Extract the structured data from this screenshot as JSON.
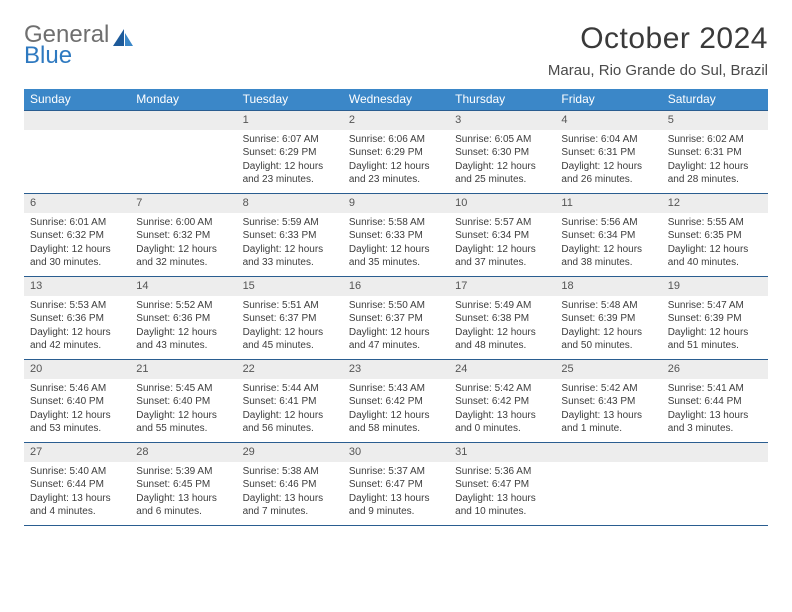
{
  "logo": {
    "general": "General",
    "blue": "Blue"
  },
  "title": "October 2024",
  "location": "Marau, Rio Grande do Sul, Brazil",
  "colors": {
    "header_bg": "#3b87c8",
    "header_text": "#ffffff",
    "week_border": "#2a5d90",
    "daynum_bg": "#ededed",
    "logo_gray": "#6f6f6f",
    "logo_blue": "#2e79c0"
  },
  "dayNames": [
    "Sunday",
    "Monday",
    "Tuesday",
    "Wednesday",
    "Thursday",
    "Friday",
    "Saturday"
  ],
  "weeks": [
    [
      {
        "n": "",
        "sr": "",
        "ss": "",
        "dl": ""
      },
      {
        "n": "",
        "sr": "",
        "ss": "",
        "dl": ""
      },
      {
        "n": "1",
        "sr": "Sunrise: 6:07 AM",
        "ss": "Sunset: 6:29 PM",
        "dl": "Daylight: 12 hours and 23 minutes."
      },
      {
        "n": "2",
        "sr": "Sunrise: 6:06 AM",
        "ss": "Sunset: 6:29 PM",
        "dl": "Daylight: 12 hours and 23 minutes."
      },
      {
        "n": "3",
        "sr": "Sunrise: 6:05 AM",
        "ss": "Sunset: 6:30 PM",
        "dl": "Daylight: 12 hours and 25 minutes."
      },
      {
        "n": "4",
        "sr": "Sunrise: 6:04 AM",
        "ss": "Sunset: 6:31 PM",
        "dl": "Daylight: 12 hours and 26 minutes."
      },
      {
        "n": "5",
        "sr": "Sunrise: 6:02 AM",
        "ss": "Sunset: 6:31 PM",
        "dl": "Daylight: 12 hours and 28 minutes."
      }
    ],
    [
      {
        "n": "6",
        "sr": "Sunrise: 6:01 AM",
        "ss": "Sunset: 6:32 PM",
        "dl": "Daylight: 12 hours and 30 minutes."
      },
      {
        "n": "7",
        "sr": "Sunrise: 6:00 AM",
        "ss": "Sunset: 6:32 PM",
        "dl": "Daylight: 12 hours and 32 minutes."
      },
      {
        "n": "8",
        "sr": "Sunrise: 5:59 AM",
        "ss": "Sunset: 6:33 PM",
        "dl": "Daylight: 12 hours and 33 minutes."
      },
      {
        "n": "9",
        "sr": "Sunrise: 5:58 AM",
        "ss": "Sunset: 6:33 PM",
        "dl": "Daylight: 12 hours and 35 minutes."
      },
      {
        "n": "10",
        "sr": "Sunrise: 5:57 AM",
        "ss": "Sunset: 6:34 PM",
        "dl": "Daylight: 12 hours and 37 minutes."
      },
      {
        "n": "11",
        "sr": "Sunrise: 5:56 AM",
        "ss": "Sunset: 6:34 PM",
        "dl": "Daylight: 12 hours and 38 minutes."
      },
      {
        "n": "12",
        "sr": "Sunrise: 5:55 AM",
        "ss": "Sunset: 6:35 PM",
        "dl": "Daylight: 12 hours and 40 minutes."
      }
    ],
    [
      {
        "n": "13",
        "sr": "Sunrise: 5:53 AM",
        "ss": "Sunset: 6:36 PM",
        "dl": "Daylight: 12 hours and 42 minutes."
      },
      {
        "n": "14",
        "sr": "Sunrise: 5:52 AM",
        "ss": "Sunset: 6:36 PM",
        "dl": "Daylight: 12 hours and 43 minutes."
      },
      {
        "n": "15",
        "sr": "Sunrise: 5:51 AM",
        "ss": "Sunset: 6:37 PM",
        "dl": "Daylight: 12 hours and 45 minutes."
      },
      {
        "n": "16",
        "sr": "Sunrise: 5:50 AM",
        "ss": "Sunset: 6:37 PM",
        "dl": "Daylight: 12 hours and 47 minutes."
      },
      {
        "n": "17",
        "sr": "Sunrise: 5:49 AM",
        "ss": "Sunset: 6:38 PM",
        "dl": "Daylight: 12 hours and 48 minutes."
      },
      {
        "n": "18",
        "sr": "Sunrise: 5:48 AM",
        "ss": "Sunset: 6:39 PM",
        "dl": "Daylight: 12 hours and 50 minutes."
      },
      {
        "n": "19",
        "sr": "Sunrise: 5:47 AM",
        "ss": "Sunset: 6:39 PM",
        "dl": "Daylight: 12 hours and 51 minutes."
      }
    ],
    [
      {
        "n": "20",
        "sr": "Sunrise: 5:46 AM",
        "ss": "Sunset: 6:40 PM",
        "dl": "Daylight: 12 hours and 53 minutes."
      },
      {
        "n": "21",
        "sr": "Sunrise: 5:45 AM",
        "ss": "Sunset: 6:40 PM",
        "dl": "Daylight: 12 hours and 55 minutes."
      },
      {
        "n": "22",
        "sr": "Sunrise: 5:44 AM",
        "ss": "Sunset: 6:41 PM",
        "dl": "Daylight: 12 hours and 56 minutes."
      },
      {
        "n": "23",
        "sr": "Sunrise: 5:43 AM",
        "ss": "Sunset: 6:42 PM",
        "dl": "Daylight: 12 hours and 58 minutes."
      },
      {
        "n": "24",
        "sr": "Sunrise: 5:42 AM",
        "ss": "Sunset: 6:42 PM",
        "dl": "Daylight: 13 hours and 0 minutes."
      },
      {
        "n": "25",
        "sr": "Sunrise: 5:42 AM",
        "ss": "Sunset: 6:43 PM",
        "dl": "Daylight: 13 hours and 1 minute."
      },
      {
        "n": "26",
        "sr": "Sunrise: 5:41 AM",
        "ss": "Sunset: 6:44 PM",
        "dl": "Daylight: 13 hours and 3 minutes."
      }
    ],
    [
      {
        "n": "27",
        "sr": "Sunrise: 5:40 AM",
        "ss": "Sunset: 6:44 PM",
        "dl": "Daylight: 13 hours and 4 minutes."
      },
      {
        "n": "28",
        "sr": "Sunrise: 5:39 AM",
        "ss": "Sunset: 6:45 PM",
        "dl": "Daylight: 13 hours and 6 minutes."
      },
      {
        "n": "29",
        "sr": "Sunrise: 5:38 AM",
        "ss": "Sunset: 6:46 PM",
        "dl": "Daylight: 13 hours and 7 minutes."
      },
      {
        "n": "30",
        "sr": "Sunrise: 5:37 AM",
        "ss": "Sunset: 6:47 PM",
        "dl": "Daylight: 13 hours and 9 minutes."
      },
      {
        "n": "31",
        "sr": "Sunrise: 5:36 AM",
        "ss": "Sunset: 6:47 PM",
        "dl": "Daylight: 13 hours and 10 minutes."
      },
      {
        "n": "",
        "sr": "",
        "ss": "",
        "dl": ""
      },
      {
        "n": "",
        "sr": "",
        "ss": "",
        "dl": ""
      }
    ]
  ]
}
